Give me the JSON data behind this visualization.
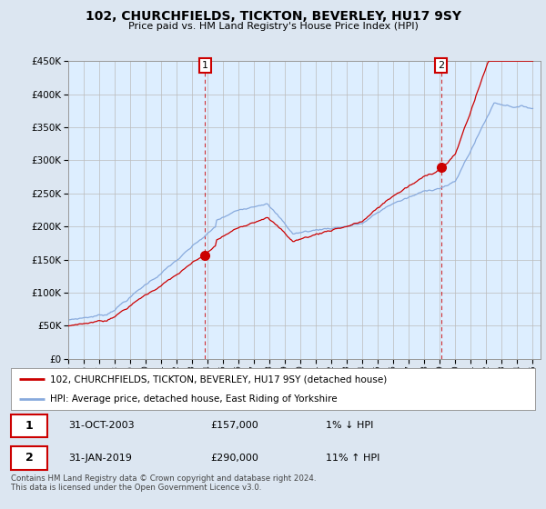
{
  "title": "102, CHURCHFIELDS, TICKTON, BEVERLEY, HU17 9SY",
  "subtitle": "Price paid vs. HM Land Registry's House Price Index (HPI)",
  "sale1_date": "31-OCT-2003",
  "sale1_price": 157000,
  "sale1_pct": "1% ↓ HPI",
  "sale2_date": "31-JAN-2019",
  "sale2_price": 290000,
  "sale2_pct": "11% ↑ HPI",
  "legend_label1": "102, CHURCHFIELDS, TICKTON, BEVERLEY, HU17 9SY (detached house)",
  "legend_label2": "HPI: Average price, detached house, East Riding of Yorkshire",
  "footnote": "Contains HM Land Registry data © Crown copyright and database right 2024.\nThis data is licensed under the Open Government Licence v3.0.",
  "price_line_color": "#cc0000",
  "hpi_line_color": "#88aadd",
  "vline_color": "#cc0000",
  "point_color": "#cc0000",
  "background_color": "#dce6f1",
  "plot_bg_color": "#ddeeff",
  "ylim": [
    0,
    450000
  ],
  "yticks": [
    0,
    50000,
    100000,
    150000,
    200000,
    250000,
    300000,
    350000,
    400000,
    450000
  ],
  "sale1_x": 2003.83,
  "sale2_x": 2019.08,
  "xmin": 1995,
  "xmax": 2025
}
